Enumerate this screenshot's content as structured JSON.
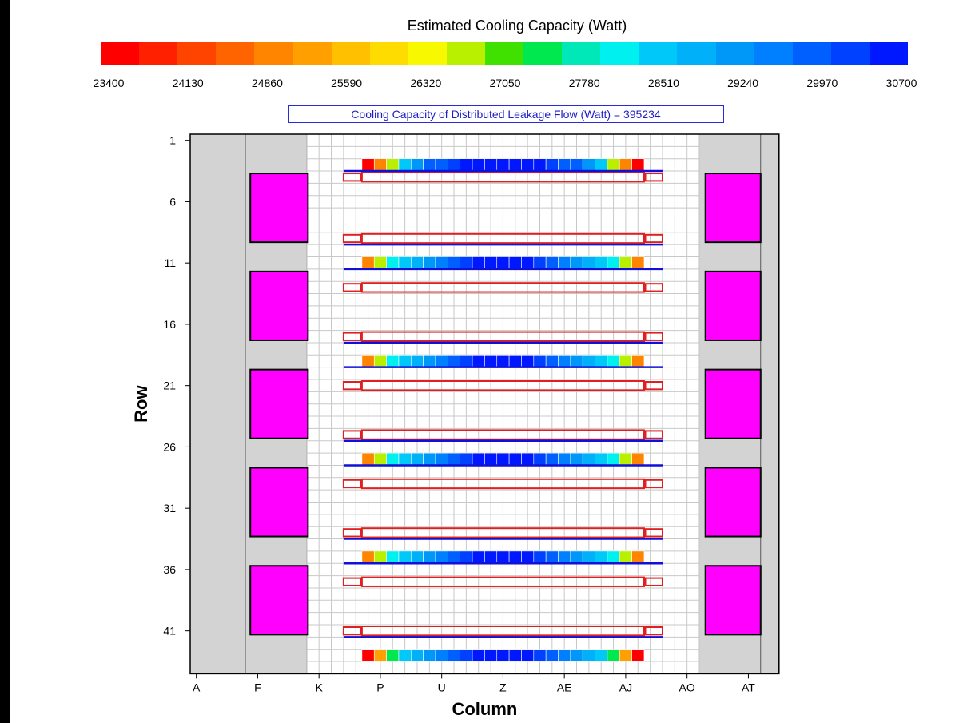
{
  "chart_data": {
    "type": "heatmap",
    "title": "Estimated Cooling Capacity (Watt)",
    "annotation": "Cooling Capacity of Distributed Leakage Flow (Watt) = 395234",
    "xlabel": "Column",
    "ylabel": "Row",
    "x_ticks": [
      "A",
      "F",
      "K",
      "P",
      "U",
      "Z",
      "AE",
      "AJ",
      "AO",
      "AT"
    ],
    "y_ticks": [
      "1",
      "6",
      "11",
      "16",
      "21",
      "26",
      "31",
      "36",
      "41"
    ],
    "colorbar": {
      "ticks": [
        "23400",
        "24130",
        "24860",
        "25590",
        "26320",
        "27050",
        "27780",
        "28510",
        "29240",
        "29970",
        "30700"
      ],
      "colors": [
        "#ff0000",
        "#ff2000",
        "#ff4400",
        "#ff6400",
        "#ff8400",
        "#ffa000",
        "#ffc000",
        "#ffdc00",
        "#f8f800",
        "#b8f000",
        "#40e000",
        "#00e850",
        "#00e8b8",
        "#00f0f0",
        "#00c8f8",
        "#00b0f8",
        "#0098f8",
        "#0080ff",
        "#0060ff",
        "#0040ff",
        "#0018ff"
      ]
    },
    "columns": 48,
    "rows": 44,
    "col_range": [
      "N",
      "AI"
    ],
    "rows_data": [
      {
        "row": 3,
        "values": [
          23400,
          25000,
          26800,
          28400,
          29300,
          29700,
          30000,
          30200,
          30400,
          30600,
          30650,
          30700,
          30650,
          30600,
          30400,
          30200,
          30000,
          29700,
          29300,
          28400,
          26800,
          25000,
          23400
        ]
      },
      {
        "row": 11,
        "values": [
          24860,
          26800,
          28000,
          28400,
          28700,
          29100,
          29500,
          29900,
          30200,
          30400,
          30600,
          30600,
          30600,
          30400,
          30200,
          29900,
          29500,
          29100,
          28700,
          28400,
          28000,
          26800,
          24860
        ]
      },
      {
        "row": 19,
        "values": [
          24860,
          26800,
          28000,
          28400,
          28700,
          29100,
          29500,
          29900,
          30200,
          30400,
          30600,
          30600,
          30600,
          30400,
          30200,
          29900,
          29500,
          29100,
          28700,
          28400,
          28000,
          26800,
          24860
        ]
      },
      {
        "row": 27,
        "values": [
          24860,
          26800,
          28000,
          28400,
          28700,
          29100,
          29500,
          29900,
          30200,
          30400,
          30600,
          30600,
          30600,
          30400,
          30200,
          29900,
          29500,
          29100,
          28700,
          28400,
          28000,
          26800,
          24860
        ]
      },
      {
        "row": 35,
        "values": [
          24860,
          26800,
          28000,
          28400,
          28700,
          29100,
          29500,
          29900,
          30200,
          30400,
          30600,
          30600,
          30600,
          30400,
          30200,
          29900,
          29500,
          29100,
          28700,
          28400,
          28000,
          26800,
          24860
        ]
      },
      {
        "row": 43,
        "values": [
          23400,
          25300,
          27500,
          28400,
          28700,
          29100,
          29500,
          29900,
          30200,
          30400,
          30600,
          30600,
          30600,
          30400,
          30200,
          29900,
          29500,
          29100,
          28700,
          28400,
          27500,
          25300,
          23400
        ]
      }
    ],
    "racks": {
      "top_rows": [
        4,
        9,
        17,
        25,
        33,
        41
      ],
      "bottom_rows": [
        13,
        21,
        29,
        37
      ]
    },
    "crac_rows": [
      [
        4,
        9
      ],
      [
        12,
        17
      ],
      [
        20,
        25
      ],
      [
        28,
        33
      ],
      [
        36,
        41
      ]
    ],
    "vmin": 23400,
    "vmax": 30700
  }
}
